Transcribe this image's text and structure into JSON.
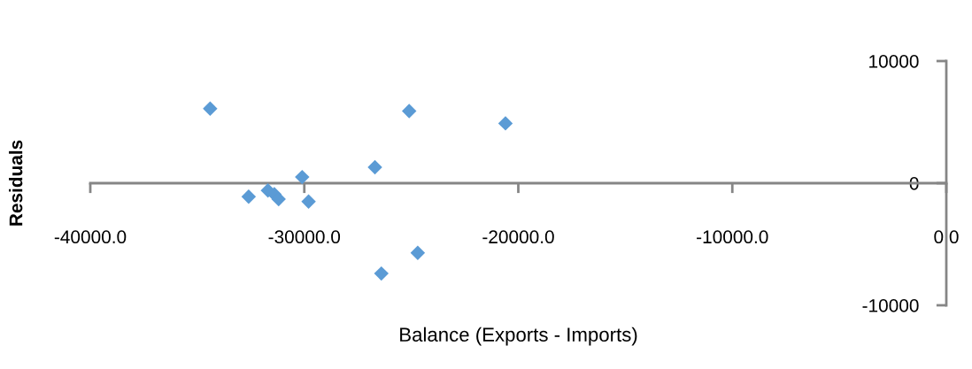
{
  "chart_data": {
    "type": "scatter",
    "xlabel": "Balance (Exports - Imports)",
    "ylabel": "Residuals",
    "series": [
      {
        "color": "#5b9bd5",
        "x": [
          -34400,
          -25100,
          -20600,
          -26700,
          -30100,
          -32600,
          -31700,
          -31400,
          -31200,
          -29800,
          -26400,
          -24700
        ],
        "values": [
          6100,
          5900,
          4900,
          1300,
          500,
          -1100,
          -600,
          -900,
          -1300,
          -1500,
          -7400,
          -5700
        ]
      }
    ],
    "xlim": [
      -40000,
      0
    ],
    "ylim": [
      -10000,
      10000
    ],
    "xticks": [
      {
        "value": -40000,
        "label": "-40000.0"
      },
      {
        "value": -30000,
        "label": "-30000.0"
      },
      {
        "value": -20000,
        "label": "-20000.0"
      },
      {
        "value": -10000,
        "label": "-10000.0"
      },
      {
        "value": 0,
        "label": "0.0"
      }
    ],
    "yticks": [
      -10000,
      0,
      10000
    ],
    "marker": "diamond",
    "grid": false
  }
}
